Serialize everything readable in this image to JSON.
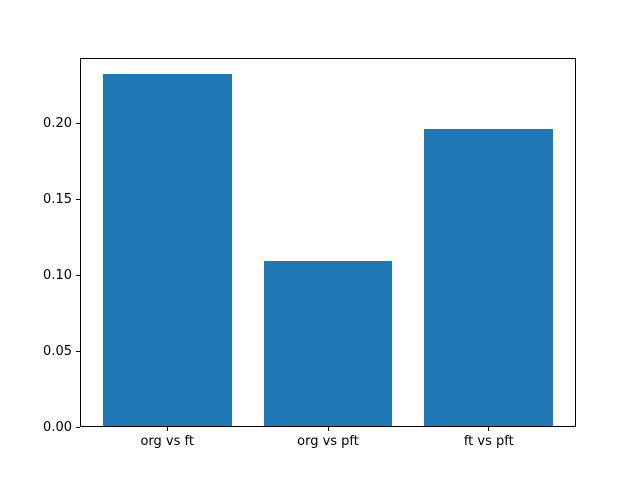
{
  "chart_data": {
    "type": "bar",
    "categories": [
      "org vs ft",
      "org vs pft",
      "ft vs pft"
    ],
    "values": [
      0.232,
      0.109,
      0.196
    ],
    "title": "",
    "xlabel": "",
    "ylabel": "",
    "ylim": [
      0,
      0.2436
    ],
    "xlim": [
      -0.5425,
      2.5425
    ],
    "yticks": [
      0.0,
      0.05,
      0.1,
      0.15,
      0.2
    ],
    "ytick_labels": [
      "0.00",
      "0.05",
      "0.10",
      "0.15",
      "0.20"
    ],
    "bar_width": 0.8,
    "bar_color": "#1f77b4",
    "grid": false,
    "legend": false,
    "background_color": "#ffffff",
    "spine_color": "#000000"
  }
}
